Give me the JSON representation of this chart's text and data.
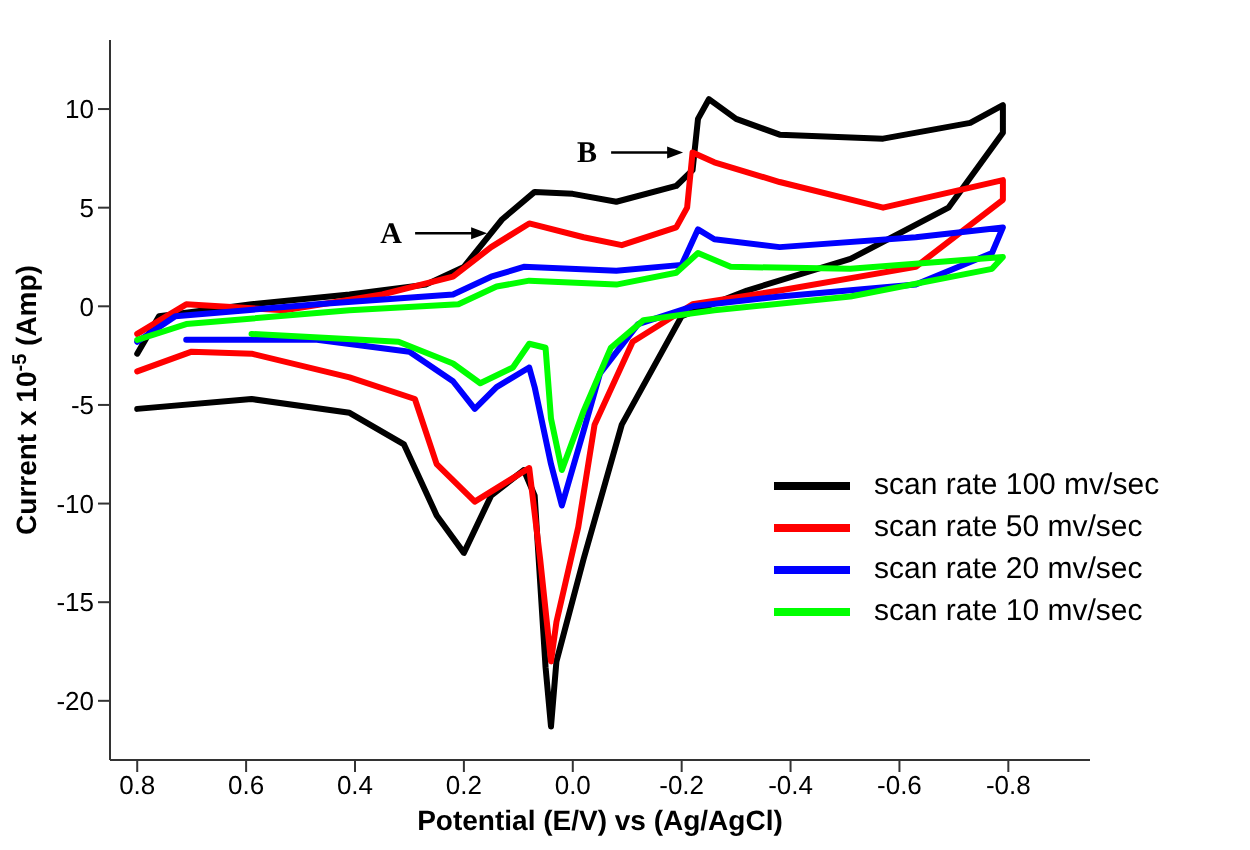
{
  "chart_data": {
    "type": "line",
    "xlabel": "Potential (E/V) vs (Ag/AgCl)",
    "ylabel": "Current  x 10$^{-5}$ (Amp)",
    "xlim": [
      0.85,
      -0.95
    ],
    "xticks": [
      0.8,
      0.6,
      0.4,
      0.2,
      {
        "value": 0,
        "label": "0.0"
      },
      -0.2,
      -0.4,
      -0.6,
      -0.8
    ],
    "ylim": [
      -23,
      13.5
    ],
    "yticks": [
      -20,
      -15,
      -10,
      -5,
      0,
      5,
      10
    ],
    "grid": false,
    "legend": "right",
    "marker": "none",
    "line_style": "solid",
    "annotations": [
      {
        "text": "A",
        "x": 0.15,
        "y": 3.7
      },
      {
        "text": "B",
        "x": -0.21,
        "y": 7.8
      }
    ],
    "series": [
      {
        "name": "scan rate 100 mv/sec",
        "color": "#000000",
        "x": [
          0.8,
          0.76,
          0.59,
          0.41,
          0.27,
          0.2,
          0.13,
          0.07,
          0.0,
          -0.08,
          -0.19,
          -0.22,
          -0.23,
          -0.25,
          -0.3,
          -0.38,
          -0.57,
          -0.73,
          -0.79,
          -0.79,
          -0.69,
          -0.51,
          -0.32,
          -0.2,
          -0.09,
          -0.02,
          0.03,
          0.04,
          0.05,
          0.07,
          0.09,
          0.15,
          0.2,
          0.25,
          0.31,
          0.41,
          0.59,
          0.8
        ],
        "values": [
          -2.4,
          -0.5,
          0.1,
          0.6,
          1.1,
          2.0,
          4.4,
          5.8,
          5.7,
          5.3,
          6.1,
          6.9,
          9.5,
          10.5,
          9.5,
          8.7,
          8.5,
          9.3,
          10.2,
          8.8,
          5.0,
          2.4,
          0.8,
          -0.5,
          -6.0,
          -12.8,
          -18.0,
          -21.3,
          -18.3,
          -9.6,
          -8.3,
          -9.6,
          -12.5,
          -10.6,
          -7.0,
          -5.4,
          -4.7,
          -5.2
        ]
      },
      {
        "name": "scan rate 50 mv/sec",
        "color": "#ff0000",
        "x": [
          0.8,
          0.71,
          0.53,
          0.35,
          0.22,
          0.15,
          0.08,
          -0.02,
          -0.09,
          -0.19,
          -0.21,
          -0.22,
          -0.26,
          -0.38,
          -0.57,
          -0.79,
          -0.79,
          -0.63,
          -0.38,
          -0.22,
          -0.11,
          -0.04,
          -0.01,
          0.03,
          0.04,
          0.06,
          0.08,
          0.18,
          0.25,
          0.29,
          0.41,
          0.59,
          0.7,
          0.8
        ],
        "values": [
          -1.4,
          0.1,
          -0.2,
          0.6,
          1.5,
          3.0,
          4.2,
          3.5,
          3.1,
          4.0,
          5.0,
          7.8,
          7.3,
          6.3,
          5.0,
          6.4,
          5.4,
          2.0,
          0.8,
          0.1,
          -1.8,
          -6.0,
          -11.2,
          -16.0,
          -18.0,
          -12.8,
          -8.2,
          -9.9,
          -8.0,
          -4.7,
          -3.6,
          -2.4,
          -2.3,
          -3.3
        ]
      },
      {
        "name": "scan rate 20 mv/sec",
        "color": "#0000ff",
        "x": [
          0.8,
          0.73,
          0.47,
          0.22,
          0.15,
          0.09,
          -0.08,
          -0.2,
          -0.23,
          -0.26,
          -0.38,
          -0.63,
          -0.79,
          -0.77,
          -0.63,
          -0.38,
          -0.22,
          -0.12,
          -0.05,
          -0.02,
          0.02,
          0.04,
          0.07,
          0.08,
          0.14,
          0.18,
          0.22,
          0.3,
          0.47,
          0.71
        ],
        "values": [
          -1.8,
          -0.5,
          0.1,
          0.6,
          1.5,
          2.0,
          1.8,
          2.1,
          3.9,
          3.4,
          3.0,
          3.5,
          4.0,
          2.7,
          1.1,
          0.5,
          0.0,
          -0.9,
          -3.4,
          -6.3,
          -10.1,
          -8.0,
          -4.1,
          -3.1,
          -4.1,
          -5.2,
          -3.8,
          -2.3,
          -1.7,
          -1.7
        ]
      },
      {
        "name": "scan rate 10 mv/sec",
        "color": "#00ff00",
        "x": [
          0.8,
          0.71,
          0.41,
          0.21,
          0.14,
          0.08,
          -0.08,
          -0.19,
          -0.23,
          -0.29,
          -0.51,
          -0.79,
          -0.77,
          -0.51,
          -0.26,
          -0.13,
          -0.07,
          -0.02,
          0.02,
          0.04,
          0.05,
          0.08,
          0.11,
          0.17,
          0.22,
          0.32,
          0.59
        ],
        "values": [
          -1.7,
          -0.9,
          -0.2,
          0.1,
          1.0,
          1.3,
          1.1,
          1.7,
          2.7,
          2.0,
          1.9,
          2.5,
          1.9,
          0.5,
          -0.2,
          -0.7,
          -2.1,
          -5.3,
          -8.3,
          -5.7,
          -2.1,
          -1.9,
          -3.1,
          -3.9,
          -2.9,
          -1.8,
          -1.4
        ]
      }
    ]
  }
}
